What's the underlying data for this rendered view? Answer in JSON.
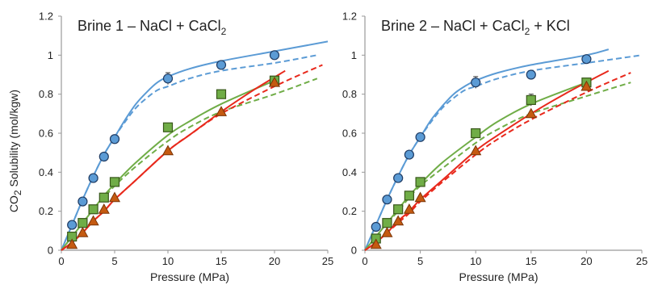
{
  "figure": {
    "ylabel_prefix": "CO",
    "ylabel_subscript": "2",
    "ylabel_suffix": " Solubility (mol/kgw)"
  },
  "colors": {
    "blue": "#5b9bd5",
    "blue_fill": "#5b9bd5",
    "green": "#70ad47",
    "green_fill": "#70ad47",
    "red": "#e8291c",
    "red_fill": "#c55a11",
    "axis": "#999999"
  },
  "chart_data": [
    {
      "type": "scatter",
      "title_parts": [
        "Brine 1 – NaCl + CaCl",
        "2",
        ""
      ],
      "xlabel": "Pressure (MPa)",
      "ylabel": "CO2 Solubility (mol/kgw)",
      "xlim": [
        0,
        25
      ],
      "ylim": [
        0,
        1.2
      ],
      "xticks": [
        0,
        5,
        10,
        15,
        20,
        25
      ],
      "yticks": [
        0,
        0.2,
        0.4,
        0.6,
        0.8,
        1,
        1.2
      ],
      "ytick_labels": [
        "0",
        "0.2",
        "0.4",
        "0.6",
        "0.8",
        "1",
        "1.2"
      ],
      "grid": false,
      "markers": [
        {
          "shape": "circle",
          "color": "blue",
          "x": [
            1,
            2,
            3,
            4,
            5,
            10,
            15,
            20
          ],
          "y": [
            0.13,
            0.25,
            0.37,
            0.48,
            0.57,
            0.88,
            0.95,
            1.0
          ],
          "error": [
            0,
            0,
            0,
            0,
            0,
            0.03,
            0,
            0
          ]
        },
        {
          "shape": "square",
          "color": "green",
          "x": [
            1,
            2,
            3,
            4,
            5,
            10,
            15,
            20
          ],
          "y": [
            0.07,
            0.14,
            0.21,
            0.27,
            0.35,
            0.63,
            0.8,
            0.87
          ],
          "error": [
            0,
            0,
            0,
            0,
            0,
            0,
            0,
            0
          ]
        },
        {
          "shape": "triangle",
          "color": "red_fill",
          "x": [
            1,
            2,
            3,
            4,
            5,
            10,
            15,
            20
          ],
          "y": [
            0.03,
            0.09,
            0.15,
            0.21,
            0.27,
            0.51,
            0.71,
            0.86
          ],
          "error": [
            0,
            0,
            0,
            0,
            0,
            0,
            0,
            0
          ]
        }
      ],
      "curves": [
        {
          "style": "solid",
          "color": "blue",
          "x": [
            0,
            1,
            2,
            3,
            4,
            5,
            6,
            7,
            8,
            9,
            10,
            12,
            15,
            20,
            25
          ],
          "y": [
            0,
            0.13,
            0.26,
            0.38,
            0.49,
            0.58,
            0.67,
            0.75,
            0.81,
            0.86,
            0.89,
            0.93,
            0.97,
            1.02,
            1.07
          ]
        },
        {
          "style": "dashed",
          "color": "blue",
          "x": [
            0,
            1,
            2,
            3,
            4,
            5,
            6,
            7,
            8,
            9,
            10,
            12,
            15,
            20,
            24
          ],
          "y": [
            0,
            0.13,
            0.26,
            0.38,
            0.49,
            0.58,
            0.66,
            0.73,
            0.78,
            0.82,
            0.84,
            0.88,
            0.92,
            0.96,
            1.0
          ]
        },
        {
          "style": "solid",
          "color": "green",
          "x": [
            0,
            1,
            2,
            3,
            4,
            5,
            7,
            10,
            12,
            15,
            20
          ],
          "y": [
            0,
            0.07,
            0.14,
            0.21,
            0.28,
            0.34,
            0.45,
            0.59,
            0.66,
            0.75,
            0.87
          ]
        },
        {
          "style": "dashed",
          "color": "green",
          "x": [
            0,
            1,
            2,
            3,
            4,
            5,
            7,
            10,
            12,
            15,
            20,
            24
          ],
          "y": [
            0,
            0.07,
            0.14,
            0.21,
            0.27,
            0.33,
            0.43,
            0.56,
            0.63,
            0.71,
            0.8,
            0.88
          ]
        },
        {
          "style": "solid",
          "color": "red",
          "x": [
            0,
            1,
            2,
            3,
            4,
            5,
            7,
            10,
            12,
            15,
            18,
            21
          ],
          "y": [
            0,
            0.04,
            0.09,
            0.15,
            0.2,
            0.26,
            0.36,
            0.51,
            0.59,
            0.71,
            0.82,
            0.92
          ]
        },
        {
          "style": "dashed",
          "color": "red",
          "x": [
            0,
            1,
            2,
            3,
            4,
            5,
            7,
            10,
            12,
            15,
            20,
            24.5
          ],
          "y": [
            0,
            0.04,
            0.09,
            0.15,
            0.2,
            0.26,
            0.36,
            0.51,
            0.59,
            0.7,
            0.84,
            0.95
          ]
        }
      ]
    },
    {
      "type": "scatter",
      "title_parts": [
        "Brine 2 – NaCl + CaCl",
        "2",
        " + KCl"
      ],
      "xlabel": "Pressure (MPa)",
      "ylabel": "",
      "xlim": [
        0,
        25
      ],
      "ylim": [
        0,
        1.2
      ],
      "xticks": [
        0,
        5,
        10,
        15,
        20,
        25
      ],
      "yticks": [
        0,
        0.2,
        0.4,
        0.6,
        0.8,
        1,
        1.2
      ],
      "ytick_labels": [
        "0",
        "0.2",
        "0.4",
        "0.6",
        "0.8",
        "1",
        "1.2"
      ],
      "grid": false,
      "markers": [
        {
          "shape": "circle",
          "color": "blue",
          "x": [
            1,
            2,
            3,
            4,
            5,
            10,
            15,
            20
          ],
          "y": [
            0.12,
            0.26,
            0.37,
            0.49,
            0.58,
            0.86,
            0.9,
            0.98
          ],
          "error": [
            0,
            0,
            0,
            0,
            0,
            0.03,
            0,
            0
          ]
        },
        {
          "shape": "square",
          "color": "green",
          "x": [
            1,
            2,
            3,
            4,
            5,
            10,
            15,
            20
          ],
          "y": [
            0.06,
            0.14,
            0.21,
            0.28,
            0.35,
            0.6,
            0.77,
            0.86
          ],
          "error": [
            0,
            0,
            0,
            0,
            0,
            0,
            0.03,
            0
          ]
        },
        {
          "shape": "triangle",
          "color": "red_fill",
          "x": [
            1,
            2,
            3,
            4,
            5,
            10,
            15,
            20
          ],
          "y": [
            0.03,
            0.09,
            0.15,
            0.21,
            0.27,
            0.51,
            0.7,
            0.84
          ],
          "error": [
            0,
            0,
            0,
            0,
            0,
            0,
            0,
            0
          ]
        }
      ],
      "curves": [
        {
          "style": "solid",
          "color": "blue",
          "x": [
            0,
            1,
            2,
            3,
            4,
            5,
            6,
            7,
            8,
            9,
            10,
            12,
            15,
            20,
            22
          ],
          "y": [
            0,
            0.13,
            0.26,
            0.38,
            0.49,
            0.58,
            0.67,
            0.74,
            0.8,
            0.84,
            0.87,
            0.91,
            0.95,
            1.0,
            1.03
          ]
        },
        {
          "style": "dashed",
          "color": "blue",
          "x": [
            0,
            1,
            2,
            3,
            4,
            5,
            6,
            7,
            8,
            9,
            10,
            12,
            15,
            20,
            25
          ],
          "y": [
            0,
            0.13,
            0.26,
            0.38,
            0.49,
            0.58,
            0.66,
            0.73,
            0.78,
            0.82,
            0.84,
            0.88,
            0.92,
            0.96,
            1.0
          ]
        },
        {
          "style": "solid",
          "color": "green",
          "x": [
            0,
            1,
            2,
            3,
            4,
            5,
            7,
            10,
            12,
            15,
            20
          ],
          "y": [
            0,
            0.07,
            0.14,
            0.21,
            0.28,
            0.34,
            0.45,
            0.58,
            0.66,
            0.75,
            0.86
          ]
        },
        {
          "style": "dashed",
          "color": "green",
          "x": [
            0,
            1,
            2,
            3,
            4,
            5,
            7,
            10,
            12,
            15,
            20,
            24
          ],
          "y": [
            0,
            0.07,
            0.14,
            0.2,
            0.27,
            0.33,
            0.42,
            0.55,
            0.62,
            0.7,
            0.79,
            0.86
          ]
        },
        {
          "style": "solid",
          "color": "red",
          "x": [
            0,
            1,
            2,
            3,
            4,
            5,
            7,
            10,
            12,
            15,
            18,
            22
          ],
          "y": [
            0,
            0.04,
            0.09,
            0.15,
            0.2,
            0.26,
            0.36,
            0.51,
            0.59,
            0.7,
            0.8,
            0.92
          ]
        },
        {
          "style": "dashed",
          "color": "red",
          "x": [
            0,
            1,
            2,
            3,
            4,
            5,
            7,
            10,
            12,
            15,
            20,
            24
          ],
          "y": [
            0,
            0.04,
            0.09,
            0.14,
            0.19,
            0.25,
            0.35,
            0.49,
            0.57,
            0.67,
            0.81,
            0.91
          ]
        }
      ]
    }
  ]
}
